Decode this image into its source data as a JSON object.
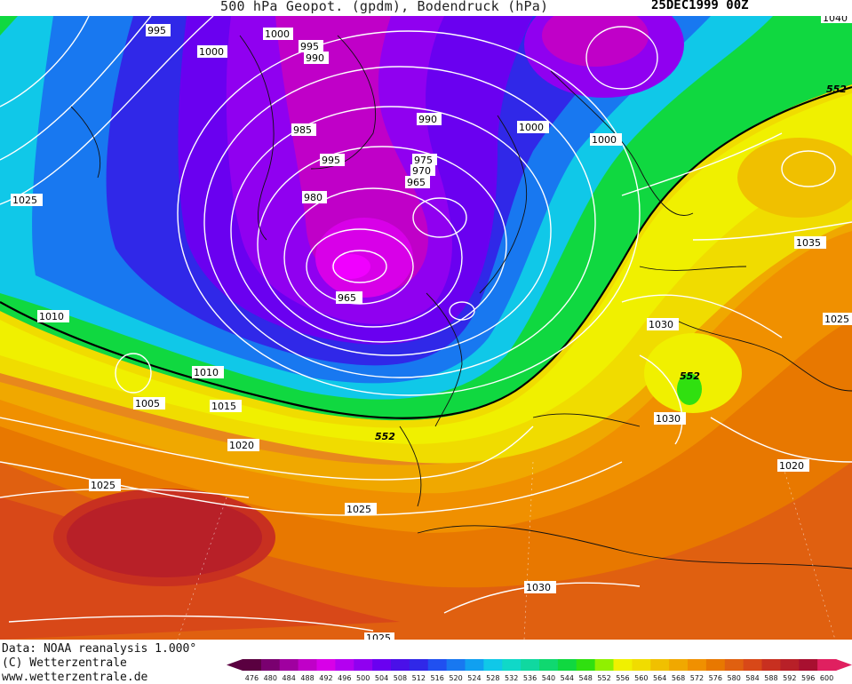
{
  "header": {
    "title": "500 hPa Geopot. (gpdm), Bodendruck (hPa)",
    "datestamp": "25DEC1999 00Z"
  },
  "footer": {
    "data_source": "Data: NOAA reanalysis 1.000°",
    "copyright": "(C) Wetterzentrale",
    "website": "www.wetterzentrale.de"
  },
  "legend": {
    "values": [
      "476",
      "480",
      "484",
      "488",
      "492",
      "496",
      "500",
      "504",
      "508",
      "512",
      "516",
      "520",
      "524",
      "528",
      "532",
      "536",
      "540",
      "544",
      "548",
      "552",
      "556",
      "560",
      "564",
      "568",
      "572",
      "576",
      "580",
      "584",
      "588",
      "592",
      "596",
      "600"
    ],
    "colors": [
      "#5a0040",
      "#7a0070",
      "#a000a0",
      "#c000c8",
      "#d800e8",
      "#b400f0",
      "#9000f0",
      "#6a00f0",
      "#4a10e8",
      "#3028e8",
      "#2050f0",
      "#1878f0",
      "#10a0f0",
      "#10c8e8",
      "#10d8c8",
      "#10d8a0",
      "#10d870",
      "#10d840",
      "#30e010",
      "#90f000",
      "#f0f000",
      "#f0dc00",
      "#f0c000",
      "#f0a800",
      "#f09000",
      "#e87800",
      "#e06010",
      "#d84818",
      "#c83020",
      "#b82028",
      "#a81030",
      "#e02060"
    ]
  },
  "isobar_labels": [
    "995",
    "1000",
    "1000",
    "995",
    "990",
    "990",
    "985",
    "995",
    "980",
    "975",
    "970",
    "965",
    "1000",
    "1000",
    "1025",
    "1010",
    "1010",
    "1005",
    "1015",
    "1020",
    "1025",
    "1025",
    "965",
    "1035",
    "1030",
    "1030",
    "1020",
    "1030",
    "1025",
    "1025",
    "1040"
  ],
  "height_labels": [
    "552",
    "552",
    "552"
  ]
}
